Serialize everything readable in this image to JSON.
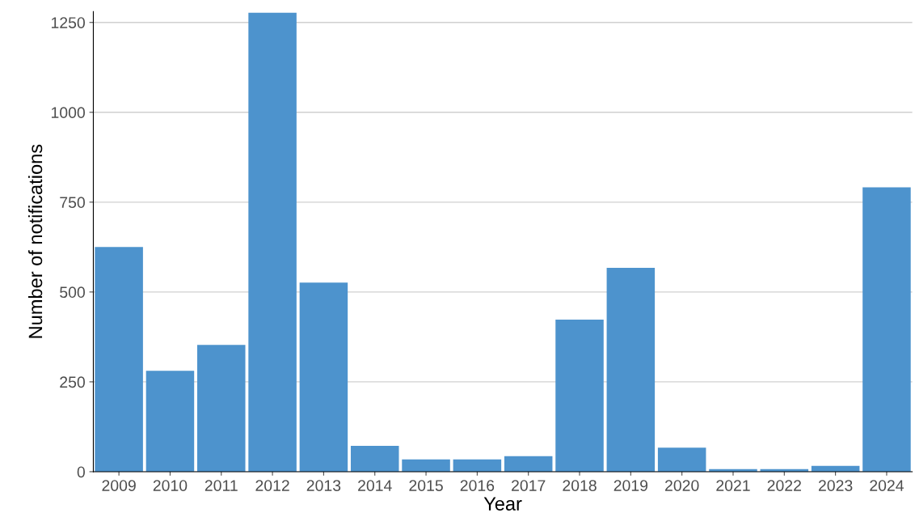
{
  "chart_data": {
    "type": "bar",
    "xlabel": "Year",
    "ylabel": "Number of notifications",
    "categories": [
      "2009",
      "2010",
      "2011",
      "2012",
      "2013",
      "2014",
      "2015",
      "2016",
      "2017",
      "2018",
      "2019",
      "2020",
      "2021",
      "2022",
      "2023",
      "2024"
    ],
    "values": [
      625,
      281,
      353,
      1277,
      526,
      72,
      34,
      34,
      43,
      423,
      567,
      67,
      7,
      7,
      16,
      791
    ],
    "color": "#4d93cd",
    "ylim": [
      0,
      1280
    ],
    "yticks": [
      0,
      250,
      500,
      750,
      1000,
      1250
    ],
    "grid": "y"
  }
}
